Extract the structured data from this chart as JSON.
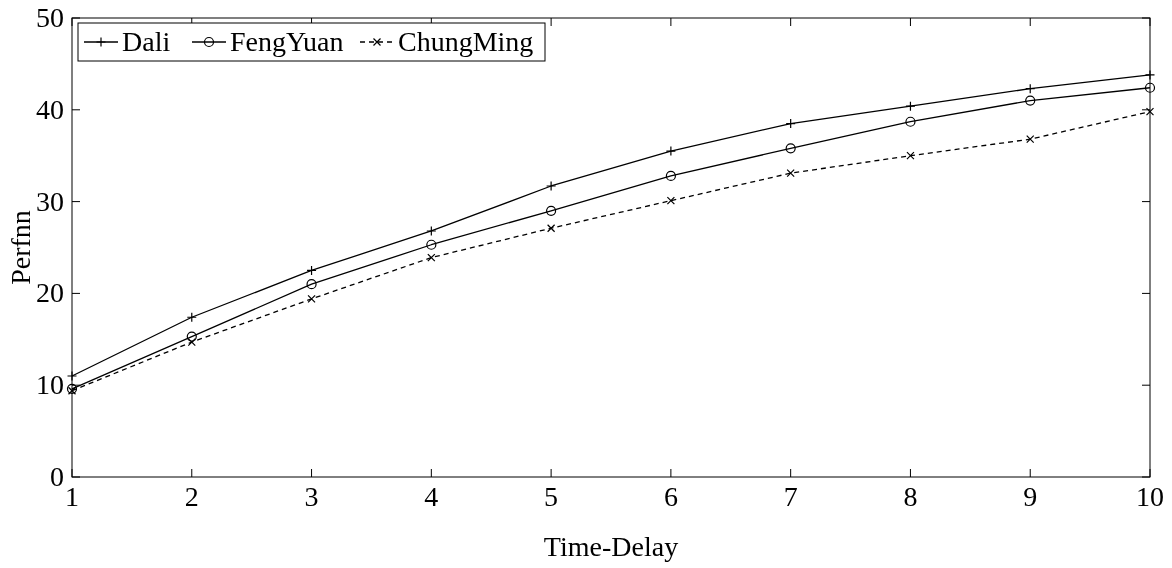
{
  "chart_data": {
    "type": "line",
    "xlabel": "Time-Delay",
    "ylabel": "Perfnn",
    "x": [
      1,
      2,
      3,
      4,
      5,
      6,
      7,
      8,
      9,
      10
    ],
    "xlim": [
      1,
      10
    ],
    "xticks": [
      1,
      2,
      3,
      4,
      5,
      6,
      7,
      8,
      9,
      10
    ],
    "ylim": [
      0,
      50
    ],
    "yticks": [
      0,
      10,
      20,
      30,
      40,
      50
    ],
    "grid": false,
    "legend": "top left",
    "series": [
      {
        "name": "Dali",
        "color": "#000000",
        "marker": "plus",
        "line_style": "solid",
        "values": [
          11.0,
          17.4,
          22.5,
          26.8,
          31.7,
          35.5,
          38.5,
          40.4,
          42.3,
          43.8
        ]
      },
      {
        "name": "FengYuan",
        "color": "#000000",
        "marker": "circle",
        "line_style": "solid",
        "values": [
          9.6,
          15.3,
          21.0,
          25.3,
          29.0,
          32.8,
          35.8,
          38.7,
          41.0,
          42.4
        ]
      },
      {
        "name": "ChungMing",
        "color": "#000000",
        "marker": "cross",
        "line_style": "dashed",
        "values": [
          9.4,
          14.7,
          19.4,
          23.9,
          27.1,
          30.1,
          33.1,
          35.0,
          36.8,
          39.8
        ]
      }
    ]
  }
}
